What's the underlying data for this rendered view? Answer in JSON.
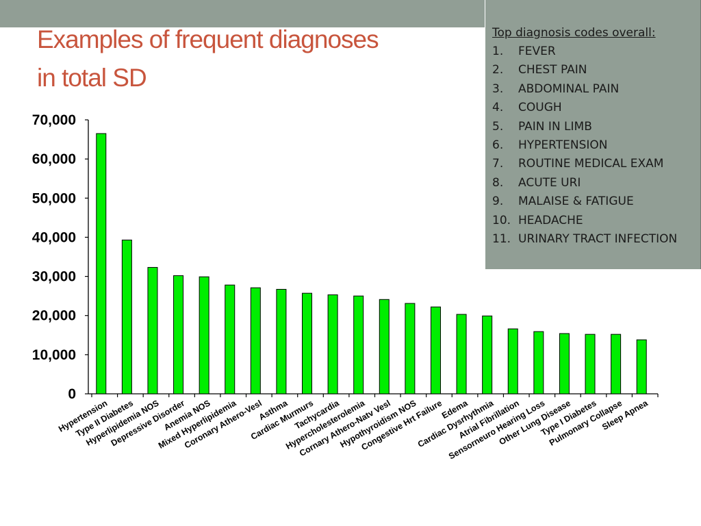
{
  "slide": {
    "title_line1": "Examples of frequent diagnoses",
    "title_line2": "in total SD",
    "title_color": "#c8553d",
    "panel_color": "#919e95"
  },
  "side_panel": {
    "heading": "Top diagnosis codes overall:",
    "items": [
      {
        "num": "1.",
        "label": "FEVER"
      },
      {
        "num": "2.",
        "label": "CHEST PAIN"
      },
      {
        "num": "3.",
        "label": "ABDOMINAL PAIN"
      },
      {
        "num": "4.",
        "label": "COUGH"
      },
      {
        "num": "5.",
        "label": "PAIN IN LIMB"
      },
      {
        "num": "6.",
        "label": "HYPERTENSION"
      },
      {
        "num": "7.",
        "label": "ROUTINE MEDICAL EXAM"
      },
      {
        "num": "8.",
        "label": "ACUTE URI"
      },
      {
        "num": "9.",
        "label": "MALAISE & FATIGUE"
      },
      {
        "num": "10.",
        "label": "HEADACHE"
      },
      {
        "num": "11.",
        "label": "URINARY TRACT INFECTION"
      }
    ]
  },
  "chart_data": {
    "type": "bar",
    "title": "",
    "xlabel": "",
    "ylabel": "",
    "ylim": [
      0,
      70000
    ],
    "yticks": [
      0,
      10000,
      20000,
      30000,
      40000,
      50000,
      60000,
      70000
    ],
    "ytick_labels": [
      "0",
      "10,000",
      "20,000",
      "30,000",
      "40,000",
      "50,000",
      "60,000",
      "70,000"
    ],
    "grid": false,
    "legend": "none",
    "bar_color": "#00ee00",
    "bar_edge_color": "#000000",
    "categories": [
      "Hypertension",
      "Type II Diabetes",
      "Hyperlipidemia NOS",
      "Depressive Disorder",
      "Anemia NOS",
      "Mixed Hyperlipidemia",
      "Coronary Athero-Vesl",
      "Asthma",
      "Cardiac Murmurs",
      "Tachycardia",
      "Hypercholesterolemia",
      "Cornary Athero-Natv Vesl",
      "Hypothyroidism NOS",
      "Congestive Hrt Failure",
      "Edema",
      "Cardiac Dysrhythmia",
      "Atrial Fibrillation",
      "Sensorneuro Hearing Loss",
      "Other Lung Disease",
      "Type I Diabetes",
      "Pulmonary Collapse",
      "Sleep Apnea"
    ],
    "values": [
      66500,
      39300,
      32300,
      30200,
      29900,
      27800,
      27100,
      26700,
      25700,
      25300,
      25000,
      24100,
      23100,
      22200,
      20300,
      19900,
      16600,
      15900,
      15400,
      15200,
      15200,
      13800
    ]
  }
}
